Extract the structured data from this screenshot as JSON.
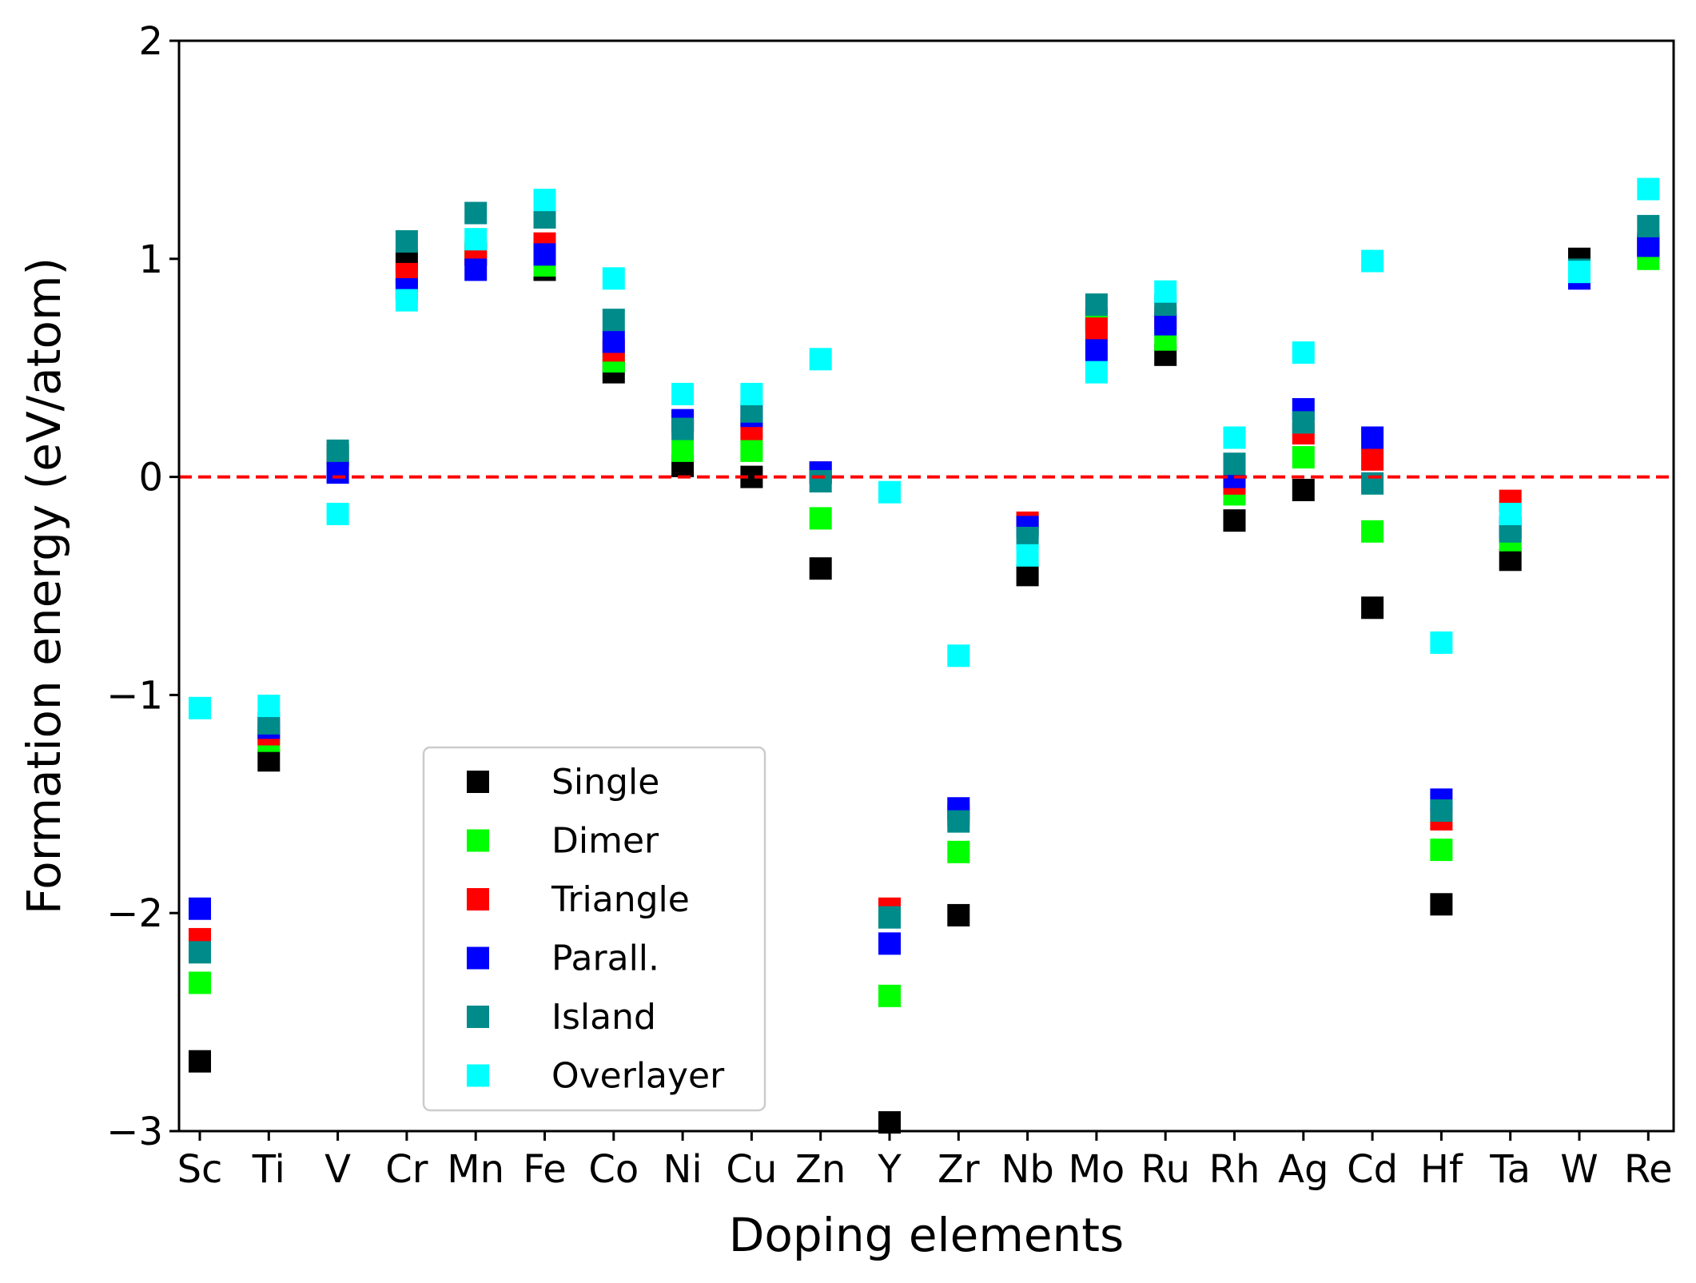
{
  "chart_data": {
    "type": "scatter",
    "title": "",
    "xlabel": "Doping elements",
    "ylabel": "Formation energy (eV/atom)",
    "ylim": [
      -3,
      2
    ],
    "yticks": [
      -3,
      -2,
      -1,
      0,
      1,
      2
    ],
    "ytick_labels": [
      "−3",
      "−2",
      "−1",
      "0",
      "1",
      "2"
    ],
    "categories": [
      "Sc",
      "Ti",
      "V",
      "Cr",
      "Mn",
      "Fe",
      "Co",
      "Ni",
      "Cu",
      "Zn",
      "Y",
      "Zr",
      "Nb",
      "Mo",
      "Ru",
      "Rh",
      "Ag",
      "Cd",
      "Hf",
      "Ta",
      "W",
      "Re"
    ],
    "reference_line": {
      "y": 0,
      "color": "#ff0000",
      "style": "dashed"
    },
    "grid": false,
    "legend_position": "lower-left",
    "marker": "square",
    "series": [
      {
        "name": "Single",
        "color": "#000000",
        "values": [
          -2.68,
          -1.3,
          0.1,
          0.99,
          1.02,
          0.95,
          0.48,
          0.05,
          0.0,
          -0.42,
          -2.96,
          -2.01,
          -0.45,
          0.72,
          0.56,
          -0.2,
          -0.06,
          -0.6,
          -1.96,
          -0.38,
          1.0,
          1.05
        ]
      },
      {
        "name": "Dimer",
        "color": "#00ff00",
        "values": [
          -2.32,
          -1.21,
          0.1,
          0.9,
          1.04,
          0.97,
          0.53,
          0.12,
          0.12,
          -0.19,
          -2.38,
          -1.72,
          -0.22,
          0.7,
          0.63,
          -0.08,
          0.09,
          -0.25,
          -1.71,
          -0.29,
          0.92,
          1.0
        ]
      },
      {
        "name": "Triangle",
        "color": "#ff0000",
        "values": [
          -2.12,
          -1.18,
          0.1,
          0.93,
          1.02,
          1.07,
          0.58,
          0.25,
          0.22,
          0.02,
          -1.98,
          -1.55,
          -0.21,
          0.68,
          0.73,
          -0.03,
          0.2,
          0.08,
          -1.57,
          -0.11,
          0.93,
          1.07
        ]
      },
      {
        "name": "Parall.",
        "color": "#0000ff",
        "values": [
          -1.98,
          -1.15,
          0.02,
          0.86,
          0.95,
          1.02,
          0.62,
          0.26,
          0.28,
          0.02,
          -2.14,
          -1.52,
          -0.23,
          0.58,
          0.7,
          0.0,
          0.31,
          0.18,
          -1.48,
          -0.23,
          0.91,
          1.06
        ]
      },
      {
        "name": "Island",
        "color": "#008b8b",
        "values": [
          -2.18,
          -1.13,
          0.12,
          1.08,
          1.21,
          1.19,
          0.72,
          0.22,
          0.3,
          -0.02,
          -2.02,
          -1.58,
          -0.28,
          0.79,
          0.79,
          0.06,
          0.25,
          -0.03,
          -1.53,
          -0.25,
          0.95,
          1.15
        ]
      },
      {
        "name": "Overlayer",
        "color": "#00ffff",
        "values": [
          -1.06,
          -1.05,
          -0.17,
          0.81,
          1.09,
          1.27,
          0.91,
          0.38,
          0.38,
          0.54,
          -0.07,
          -0.82,
          -0.36,
          0.48,
          0.85,
          0.18,
          0.57,
          0.99,
          -0.76,
          -0.17,
          0.94,
          1.32
        ]
      }
    ]
  }
}
